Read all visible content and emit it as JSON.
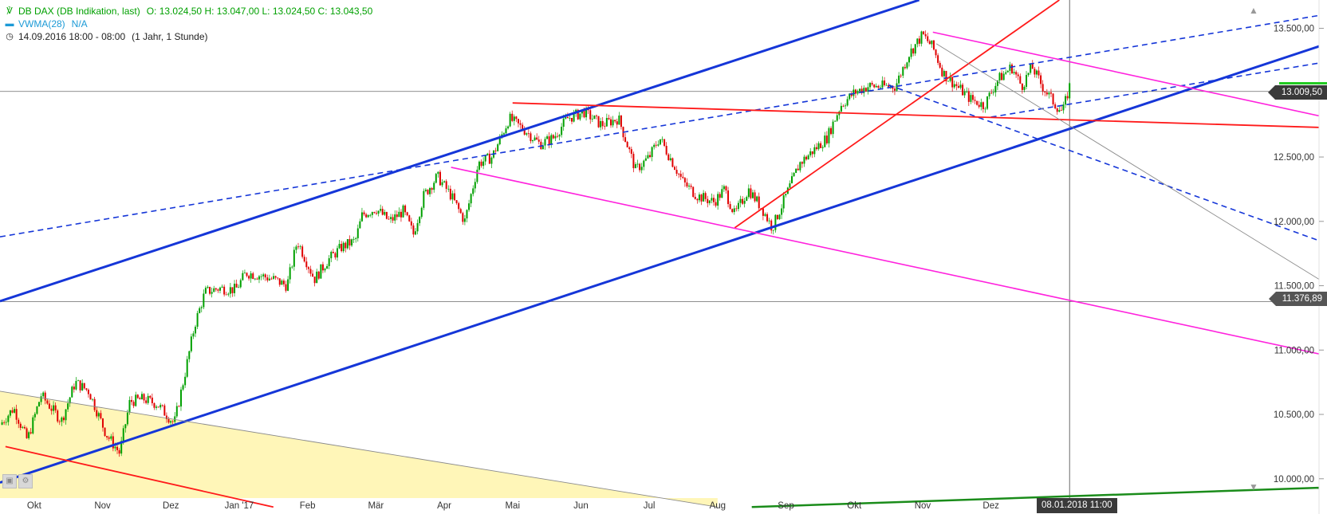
{
  "legend": {
    "instrument_label": "DB DAX (DB Indikation, last)",
    "ohlc": "O: 13.024,50   H: 13.047,00   L: 13.024,50   C: 13.043,50",
    "indicator_label": "VWMA(28)",
    "indicator_value": "N/A",
    "period": "14.09.2016 18:00 - 08:00",
    "range": "(1 Jahr, 1 Stunde)"
  },
  "price_tags": {
    "current": "13.009,50",
    "horizontal_line": "11.376,89"
  },
  "crosshair_date": "08.01.2018 11:00",
  "icons": {
    "chart_icon": "candlestick-icon",
    "indicator_icon": "dash-icon",
    "clock_icon": "clock-icon",
    "scroll_up": "triangle-up-icon",
    "scroll_down": "triangle-down-icon",
    "corner_1": "expand-icon",
    "corner_2": "settings-icon"
  },
  "colors": {
    "candle_up": "#00a000",
    "candle_down": "#e00000",
    "blue_trend": "#1536d8",
    "red_trend": "#ff1a1a",
    "magenta_trend": "#ff22dd",
    "green_trend": "#1a8c1a",
    "yellow_zone": "#fff6b8"
  },
  "chart_data": {
    "type": "candlestick",
    "title": "",
    "xlabel": "",
    "ylabel": "",
    "x_tick_labels": [
      "Okt",
      "Nov",
      "Dez",
      "Jan '17",
      "Feb",
      "Mär",
      "Apr",
      "Mai",
      "Jun",
      "Jul",
      "Aug",
      "Sep",
      "Okt",
      "Nov",
      "Dez"
    ],
    "y_tick_labels": [
      "13.500,00",
      "13.000,00",
      "12.500,00",
      "12.000,00",
      "11.500,00",
      "11.000,00",
      "10.500,00",
      "10.000,00"
    ],
    "y_ticks": [
      13500,
      13000,
      12500,
      12000,
      11500,
      11000,
      10500,
      10000
    ],
    "ylim": [
      9850,
      13720
    ],
    "x_ticks_month_index": [
      0.5,
      1.5,
      2.5,
      3.5,
      4.5,
      5.5,
      6.5,
      7.5,
      8.5,
      9.5,
      10.5,
      11.5,
      12.5,
      13.5,
      14.5
    ],
    "xlim_month_index": [
      0,
      19.3
    ],
    "price_path": [
      [
        0.0,
        10420
      ],
      [
        0.2,
        10550
      ],
      [
        0.4,
        10300
      ],
      [
        0.6,
        10650
      ],
      [
        0.9,
        10450
      ],
      [
        1.1,
        10750
      ],
      [
        1.3,
        10680
      ],
      [
        1.55,
        10350
      ],
      [
        1.75,
        10200
      ],
      [
        1.9,
        10600
      ],
      [
        2.1,
        10620
      ],
      [
        2.3,
        10580
      ],
      [
        2.55,
        10430
      ],
      [
        2.7,
        10800
      ],
      [
        2.85,
        11200
      ],
      [
        3.0,
        11450
      ],
      [
        3.2,
        11480
      ],
      [
        3.45,
        11470
      ],
      [
        3.6,
        11600
      ],
      [
        3.8,
        11580
      ],
      [
        4.0,
        11550
      ],
      [
        4.2,
        11500
      ],
      [
        4.35,
        11850
      ],
      [
        4.6,
        11550
      ],
      [
        4.8,
        11700
      ],
      [
        5.0,
        11800
      ],
      [
        5.2,
        11850
      ],
      [
        5.3,
        12050
      ],
      [
        5.5,
        12100
      ],
      [
        5.7,
        12000
      ],
      [
        5.9,
        12080
      ],
      [
        6.05,
        11900
      ],
      [
        6.2,
        12200
      ],
      [
        6.4,
        12350
      ],
      [
        6.6,
        12200
      ],
      [
        6.8,
        12000
      ],
      [
        7.0,
        12450
      ],
      [
        7.2,
        12500
      ],
      [
        7.45,
        12800
      ],
      [
        7.7,
        12700
      ],
      [
        7.9,
        12600
      ],
      [
        8.1,
        12650
      ],
      [
        8.3,
        12800
      ],
      [
        8.55,
        12850
      ],
      [
        8.8,
        12750
      ],
      [
        9.05,
        12800
      ],
      [
        9.3,
        12400
      ],
      [
        9.5,
        12500
      ],
      [
        9.65,
        12650
      ],
      [
        9.85,
        12450
      ],
      [
        10.0,
        12300
      ],
      [
        10.2,
        12200
      ],
      [
        10.45,
        12150
      ],
      [
        10.6,
        12250
      ],
      [
        10.75,
        12050
      ],
      [
        10.95,
        12250
      ],
      [
        11.15,
        12100
      ],
      [
        11.3,
        11950
      ],
      [
        11.5,
        12200
      ],
      [
        11.7,
        12450
      ],
      [
        11.9,
        12550
      ],
      [
        12.1,
        12650
      ],
      [
        12.3,
        12900
      ],
      [
        12.5,
        13000
      ],
      [
        12.7,
        13050
      ],
      [
        12.9,
        13050
      ],
      [
        13.1,
        13050
      ],
      [
        13.3,
        13300
      ],
      [
        13.5,
        13450
      ],
      [
        13.65,
        13350
      ],
      [
        13.8,
        13150
      ],
      [
        14.0,
        13050
      ],
      [
        14.2,
        12950
      ],
      [
        14.4,
        12900
      ],
      [
        14.6,
        13100
      ],
      [
        14.8,
        13200
      ],
      [
        14.95,
        13050
      ],
      [
        15.1,
        13200
      ],
      [
        15.25,
        13050
      ],
      [
        15.45,
        12900
      ],
      [
        15.55,
        12850
      ],
      [
        15.65,
        13050
      ]
    ],
    "horizontal_lines": [
      13009.5,
      11376.89
    ],
    "crosshair_x_month_index": 15.65,
    "trendlines": [
      {
        "style": "blue-solid",
        "from": [
          0.0,
          11380
        ],
        "to": [
          13.45,
          13720
        ]
      },
      {
        "style": "blue-solid",
        "from": [
          0.0,
          9970
        ],
        "to": [
          19.3,
          13360
        ]
      },
      {
        "style": "blue-dashed",
        "from": [
          0.0,
          11880
        ],
        "to": [
          19.3,
          13600
        ]
      },
      {
        "style": "blue-dashed",
        "from": [
          13.0,
          13060
        ],
        "to": [
          19.3,
          11850
        ]
      },
      {
        "style": "blue-dashed",
        "from": [
          14.5,
          12810
        ],
        "to": [
          19.3,
          13230
        ]
      },
      {
        "style": "red-solid",
        "from": [
          7.5,
          12920
        ],
        "to": [
          19.3,
          12730
        ]
      },
      {
        "style": "red-solid",
        "from": [
          10.75,
          11950
        ],
        "to": [
          15.5,
          13720
        ]
      },
      {
        "style": "red-solid",
        "from": [
          0.08,
          10250
        ],
        "to": [
          4.0,
          9780
        ]
      },
      {
        "style": "magenta-solid",
        "from": [
          6.6,
          12420
        ],
        "to": [
          19.3,
          10970
        ]
      },
      {
        "style": "magenta-solid",
        "from": [
          13.65,
          13470
        ],
        "to": [
          19.3,
          12820
        ]
      },
      {
        "style": "gray-thin",
        "from": [
          13.7,
          13380
        ],
        "to": [
          19.3,
          11550
        ]
      },
      {
        "style": "gray-thin",
        "from": [
          0.0,
          10680
        ],
        "to": [
          10.5,
          9780
        ]
      },
      {
        "style": "green-solid",
        "from": [
          11.0,
          9780
        ],
        "to": [
          19.3,
          9930
        ]
      }
    ],
    "shaded_zone": {
      "from_x": 0.0,
      "to_x": 10.5,
      "top_from": [
        0.0,
        10680
      ],
      "top_to": [
        10.5,
        9780
      ]
    },
    "grid": false,
    "legend_position": "top-left"
  }
}
